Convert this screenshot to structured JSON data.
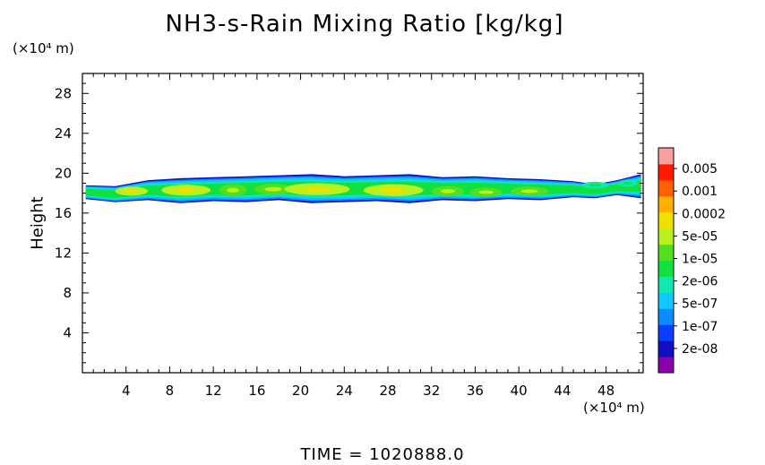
{
  "chart_data": {
    "type": "heatmap",
    "title": "NH3-s-Rain Mixing Ratio [kg/kg]",
    "ylabel": "Height",
    "y_unit": "(×10⁴ m)",
    "x_unit": "(×10⁴ m)",
    "footer": "TIME  =  1020888.0",
    "xlim": [
      0,
      51.4
    ],
    "ylim": [
      0,
      30
    ],
    "xticks": [
      4,
      8,
      12,
      16,
      20,
      24,
      28,
      32,
      36,
      40,
      44,
      48
    ],
    "yticks": [
      4,
      8,
      12,
      16,
      20,
      24,
      28
    ],
    "colorbar": {
      "labels": [
        "0.005",
        "0.001",
        "0.0002",
        "5e-05",
        "1e-05",
        "2e-06",
        "5e-07",
        "1e-07",
        "2e-08"
      ],
      "colors": [
        "#8b00aa",
        "#1010c0",
        "#0c3cff",
        "#0c8cff",
        "#10c8ff",
        "#10e8b0",
        "#10e040",
        "#50e020",
        "#b8f020",
        "#f0e000",
        "#ffb000",
        "#ff6000",
        "#ff1a00",
        "#f8a0a0"
      ]
    },
    "band": {
      "bottom": [
        17.4,
        17.1,
        17.3,
        17.0,
        17.2,
        17.1,
        17.3,
        17.0,
        17.1,
        17.2,
        17.0,
        17.3,
        17.2,
        17.4,
        17.3,
        17.6,
        17.5,
        17.8,
        17.5
      ],
      "top": [
        18.8,
        18.7,
        19.3,
        19.5,
        19.6,
        19.7,
        19.8,
        19.9,
        19.7,
        19.8,
        19.9,
        19.6,
        19.7,
        19.5,
        19.4,
        19.2,
        18.9,
        19.3,
        19.9
      ],
      "x": [
        0.3,
        3,
        6,
        9,
        12,
        15,
        18,
        21,
        24,
        27,
        30,
        33,
        36,
        39,
        42,
        45,
        47,
        49,
        51.2
      ]
    },
    "cores": [
      {
        "x": 4.5,
        "y": 18.2,
        "w": 3.0,
        "h": 0.9,
        "level": 8
      },
      {
        "x": 9.5,
        "y": 18.3,
        "w": 4.5,
        "h": 1.1,
        "level": 8
      },
      {
        "x": 13.8,
        "y": 18.3,
        "w": 2.5,
        "h": 1.2,
        "level": 7
      },
      {
        "x": 17.5,
        "y": 18.4,
        "w": 3.5,
        "h": 1.1,
        "level": 7
      },
      {
        "x": 21.5,
        "y": 18.4,
        "w": 6.0,
        "h": 1.2,
        "level": 8
      },
      {
        "x": 28.5,
        "y": 18.3,
        "w": 5.5,
        "h": 1.2,
        "level": 8
      },
      {
        "x": 33.5,
        "y": 18.2,
        "w": 3.0,
        "h": 1.0,
        "level": 7
      },
      {
        "x": 37.0,
        "y": 18.1,
        "w": 3.0,
        "h": 0.9,
        "level": 7
      },
      {
        "x": 41.0,
        "y": 18.2,
        "w": 3.5,
        "h": 0.9,
        "level": 7
      },
      {
        "x": 47.0,
        "y": 18.8,
        "w": 2.5,
        "h": 0.7,
        "level": 5
      },
      {
        "x": 50.0,
        "y": 19.0,
        "w": 1.8,
        "h": 0.7,
        "level": 5
      }
    ]
  }
}
